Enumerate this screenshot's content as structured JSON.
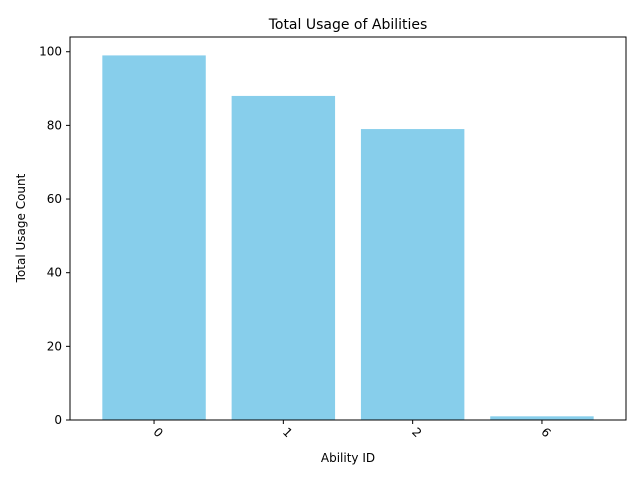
{
  "chart_data": {
    "type": "bar",
    "title": "Total Usage of Abilities",
    "xlabel": "Ability ID",
    "ylabel": "Total Usage Count",
    "categories": [
      "0",
      "1",
      "2",
      "6"
    ],
    "values": [
      99,
      88,
      79,
      1
    ],
    "ylim": [
      0,
      104
    ],
    "yticks": [
      0,
      20,
      40,
      60,
      80,
      100
    ],
    "bar_color": "#87ceeb",
    "xtick_rotation": 45,
    "grid": false,
    "legend": "none"
  }
}
